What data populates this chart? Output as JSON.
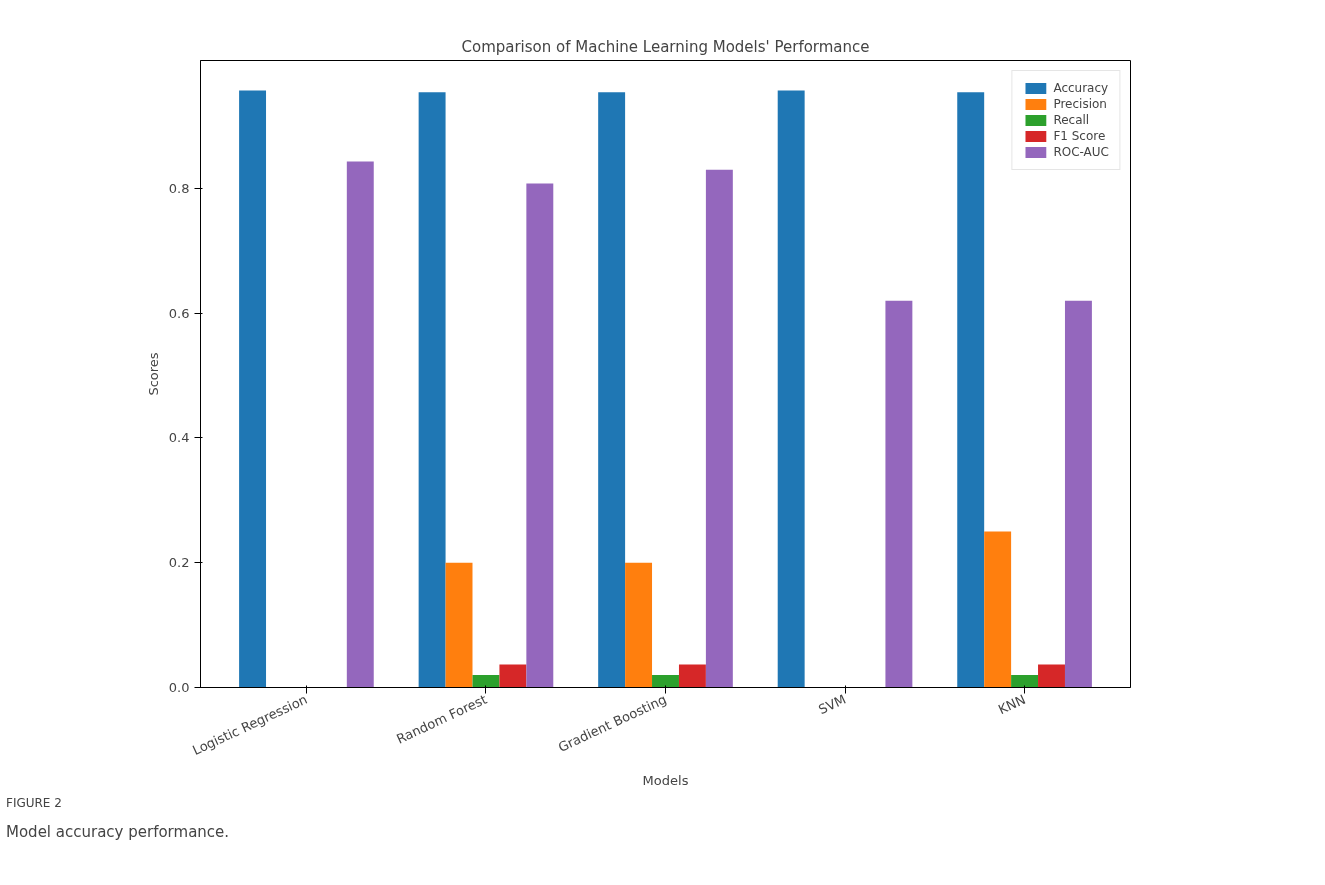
{
  "chart_data": {
    "type": "bar",
    "title": "Comparison of Machine Learning Models' Performance",
    "xlabel": "Models",
    "ylabel": "Scores",
    "categories": [
      "Logistic Regression",
      "Random Forest",
      "Gradient Boosting",
      "SVM",
      "KNN"
    ],
    "series": [
      {
        "name": "Accuracy",
        "color": "#1f77b4",
        "values": [
          0.957,
          0.954,
          0.954,
          0.957,
          0.954
        ]
      },
      {
        "name": "Precision",
        "color": "#ff7f0e",
        "values": [
          0,
          0.2,
          0.2,
          0,
          0.25
        ]
      },
      {
        "name": "Recall",
        "color": "#2ca02c",
        "values": [
          0,
          0.02,
          0.02,
          0,
          0.02
        ]
      },
      {
        "name": "F1 Score",
        "color": "#d62728",
        "values": [
          0,
          0.037,
          0.037,
          0,
          0.037
        ]
      },
      {
        "name": "ROC-AUC",
        "color": "#9467bd",
        "values": [
          0.843,
          0.808,
          0.83,
          0.62,
          0.62
        ]
      }
    ],
    "ylim": [
      0,
      1.005
    ],
    "yticks": [
      {
        "value": 0,
        "label": "0.0"
      },
      {
        "value": 0.2,
        "label": "0.2"
      },
      {
        "value": 0.4,
        "label": "0.4"
      },
      {
        "value": 0.6,
        "label": "0.6"
      },
      {
        "value": 0.8,
        "label": "0.8"
      }
    ],
    "grid": false,
    "legend": "top right",
    "annotations": [
      "FIGURE 2",
      "Model accuracy performance."
    ]
  }
}
